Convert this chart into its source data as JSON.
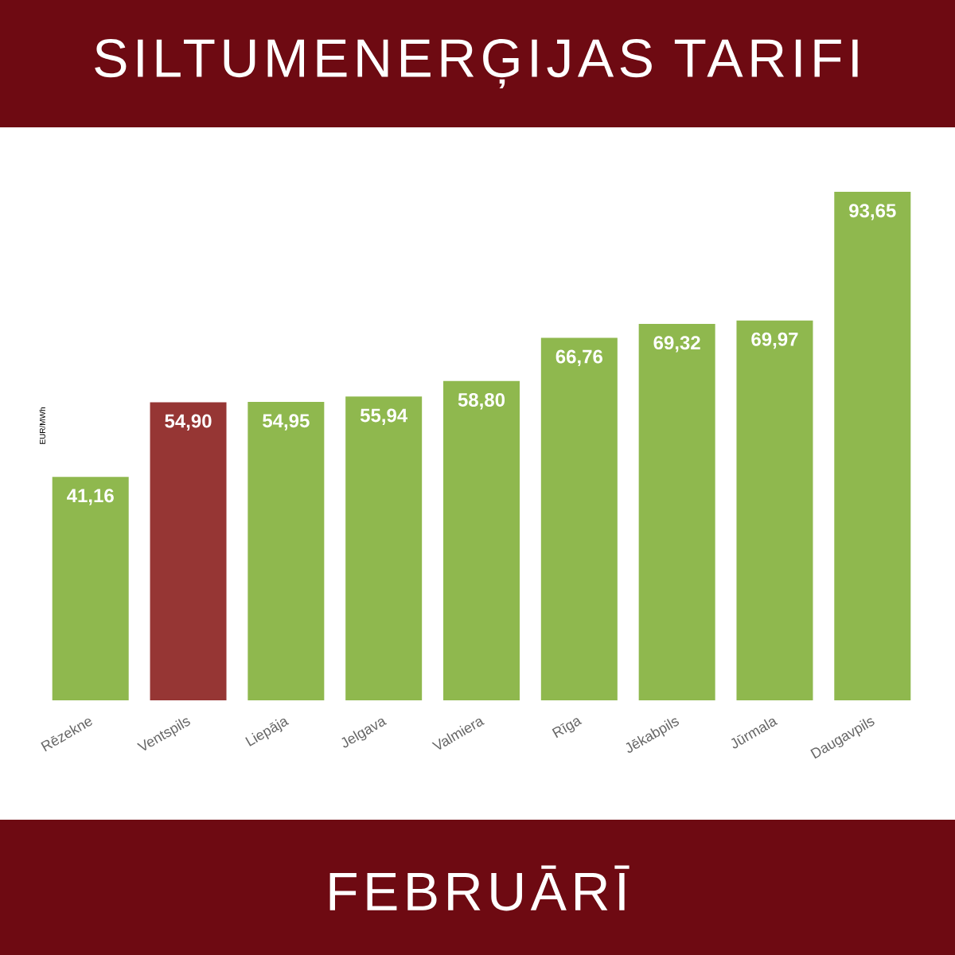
{
  "chart_data": {
    "type": "bar",
    "title": "SILTUMENERĢIJAS TARIFI",
    "subtitle": "FEBRUĀRĪ",
    "ylabel": "EUR/MWh",
    "categories": [
      "Rēzekne",
      "Ventspils",
      "Liepāja",
      "Jelgava",
      "Valmiera",
      "Rīga",
      "Jēkabpils",
      "Jūrmala",
      "Daugavpils"
    ],
    "values": [
      41.16,
      54.9,
      54.95,
      55.94,
      58.8,
      66.76,
      69.32,
      69.97,
      93.65
    ],
    "value_labels": [
      "41,16",
      "54,90",
      "54,95",
      "55,94",
      "58,80",
      "66,76",
      "69,32",
      "69,97",
      "93,65"
    ],
    "colors": [
      "#8fb84e",
      "#963634",
      "#8fb84e",
      "#8fb84e",
      "#8fb84e",
      "#8fb84e",
      "#8fb84e",
      "#8fb84e",
      "#8fb84e"
    ]
  }
}
